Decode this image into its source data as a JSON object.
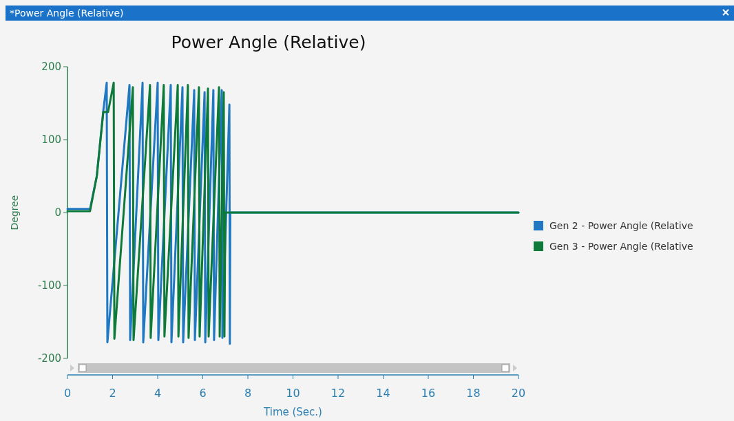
{
  "chart_data": {
    "type": "line",
    "title": "Power Angle (Relative)",
    "xlabel": "Time (Sec.)",
    "ylabel": "Degree",
    "annotations": [
      "*Power Angle (Relative)"
    ],
    "xlim": [
      0,
      20
    ],
    "xticks": [
      0,
      2,
      4,
      6,
      8,
      10,
      12,
      14,
      16,
      18,
      20
    ],
    "ylim": [
      -200,
      200
    ],
    "yticks": [
      -200,
      -100,
      0,
      100,
      200
    ],
    "legend": "right",
    "grid": false,
    "series": [
      {
        "name": "Gen 2 - Power Angle (Relative",
        "color": "#1f78c1",
        "x": [
          0,
          1,
          1.3,
          1.59,
          1.74,
          1.77,
          2.75,
          2.78,
          3.33,
          3.36,
          4.0,
          4.03,
          4.58,
          4.61,
          5.1,
          5.13,
          5.62,
          5.65,
          6.08,
          6.11,
          6.47,
          6.5,
          6.84,
          6.87,
          7.18,
          7.2,
          7.22,
          20
        ],
        "values": [
          5,
          5,
          50,
          140,
          178,
          -178,
          175,
          -175,
          178,
          -178,
          178,
          -175,
          175,
          -178,
          172,
          -178,
          168,
          -175,
          165,
          -178,
          168,
          -175,
          168,
          -172,
          148,
          -180,
          0,
          0
        ]
      },
      {
        "name": "Gen 3 - Power Angle (Relative",
        "color": "#0d7a3a",
        "x": [
          0,
          1,
          1.3,
          1.59,
          1.8,
          2.05,
          2.08,
          2.9,
          2.93,
          3.66,
          3.69,
          4.27,
          4.3,
          4.89,
          4.92,
          5.34,
          5.37,
          5.83,
          5.86,
          6.23,
          6.26,
          6.72,
          6.75,
          6.93,
          6.96,
          7.0,
          20
        ],
        "values": [
          2,
          2,
          50,
          138,
          138,
          178,
          -173,
          172,
          -175,
          175,
          -172,
          175,
          -170,
          175,
          -170,
          175,
          -172,
          172,
          -170,
          170,
          -170,
          172,
          -170,
          165,
          -170,
          0,
          0
        ]
      }
    ]
  }
}
